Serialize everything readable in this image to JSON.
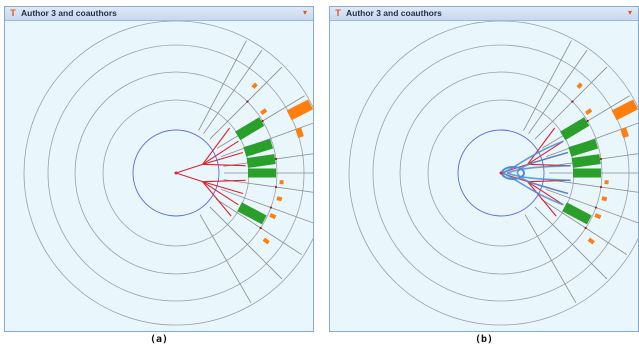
{
  "panels": [
    {
      "title": "Author 3 and coauthors",
      "caption": "(a)",
      "show_contours": false
    },
    {
      "title": "Author 3 and coauthors",
      "caption": "(b)",
      "show_contours": true
    }
  ],
  "icons": {
    "app": "T",
    "window_menu": "▾"
  },
  "colors": {
    "panel_bg": "#e9f6fc",
    "ring": "#9aa0a6",
    "inner_circle": "#5c6bd8",
    "edge_red": "#e0202a",
    "coauthor_bar": "#2aa02a",
    "outer_bar": "#ff7f0e",
    "contour_blue": "#4a8fd4"
  }
}
